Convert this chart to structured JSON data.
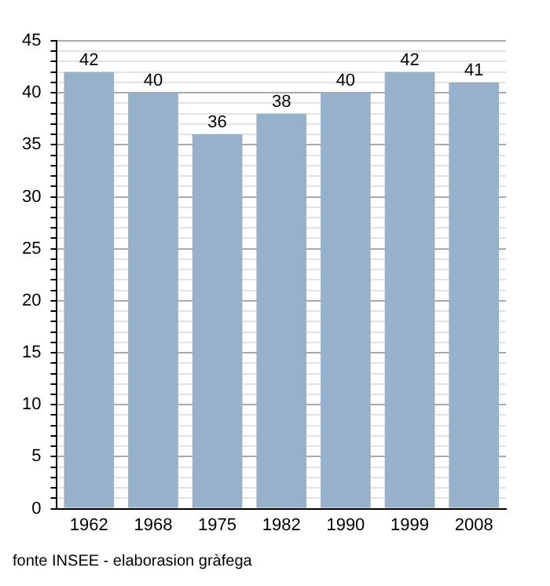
{
  "chart_data": {
    "type": "bar",
    "categories": [
      "1962",
      "1968",
      "1975",
      "1982",
      "1990",
      "1999",
      "2008"
    ],
    "values": [
      42,
      40,
      36,
      38,
      40,
      42,
      41
    ],
    "color": "#97b1cb",
    "data_labels": true,
    "grid": "y",
    "ylim": [
      0,
      45
    ],
    "yticks": [
      0,
      {
        "value": 1,
        "label": null
      },
      {
        "value": 2,
        "label": null
      },
      {
        "value": 3,
        "label": null
      },
      {
        "value": 4,
        "label": null
      },
      5,
      {
        "value": 6,
        "label": null
      },
      {
        "value": 7,
        "label": null
      },
      {
        "value": 8,
        "label": null
      },
      {
        "value": 9,
        "label": null
      },
      10,
      {
        "value": 11,
        "label": null
      },
      {
        "value": 12,
        "label": null
      },
      {
        "value": 13,
        "label": null
      },
      {
        "value": 14,
        "label": null
      },
      15,
      {
        "value": 16,
        "label": null
      },
      {
        "value": 17,
        "label": null
      },
      {
        "value": 18,
        "label": null
      },
      {
        "value": 19,
        "label": null
      },
      20,
      {
        "value": 21,
        "label": null
      },
      {
        "value": 22,
        "label": null
      },
      {
        "value": 23,
        "label": null
      },
      {
        "value": 24,
        "label": null
      },
      25,
      {
        "value": 26,
        "label": null
      },
      {
        "value": 27,
        "label": null
      },
      {
        "value": 28,
        "label": null
      },
      {
        "value": 29,
        "label": null
      },
      30,
      {
        "value": 31,
        "label": null
      },
      {
        "value": 32,
        "label": null
      },
      {
        "value": 33,
        "label": null
      },
      {
        "value": 34,
        "label": null
      },
      35,
      {
        "value": 36,
        "label": null
      },
      {
        "value": 37,
        "label": null
      },
      {
        "value": 38,
        "label": null
      },
      {
        "value": 39,
        "label": null
      },
      40,
      {
        "value": 41,
        "label": null
      },
      {
        "value": 42,
        "label": null
      },
      {
        "value": 43,
        "label": null
      },
      {
        "value": 44,
        "label": null
      },
      45
    ],
    "annotations": [
      "fonte INSEE - elaborasion gràfega"
    ]
  }
}
